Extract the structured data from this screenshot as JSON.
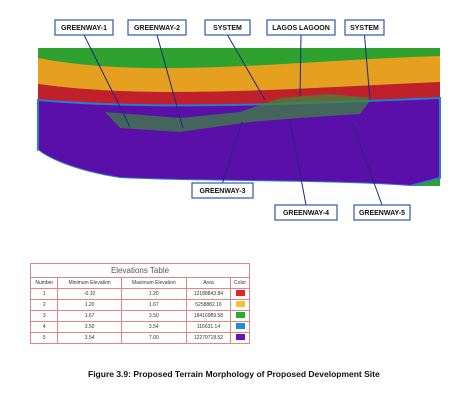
{
  "figure": {
    "callouts": [
      "GREENWAY-1",
      "GREENWAY-2",
      "SYSTEM",
      "LAGOS LAGOON",
      "SYSTEM",
      "GREENWAY-3",
      "GREENWAY-4",
      "GREENWAY-5"
    ]
  },
  "table": {
    "title": "Elevations Table",
    "headers": [
      "Number",
      "Minimum Elevation",
      "Maximum Elevation",
      "Area",
      "Color"
    ],
    "rows": [
      {
        "cells": [
          "1",
          "-0.10",
          "1.20",
          "12188843.84"
        ],
        "color": "#e8202a"
      },
      {
        "cells": [
          "2",
          "1.20",
          "1.67",
          "5258882.16"
        ],
        "color": "#f2c230"
      },
      {
        "cells": [
          "3",
          "1.67",
          "3.50",
          "18416989.58"
        ],
        "color": "#26b026"
      },
      {
        "cells": [
          "4",
          "3.50",
          "3.54",
          "116631.14"
        ],
        "color": "#1a8fd6"
      },
      {
        "cells": [
          "5",
          "3.54",
          "7.00",
          "12270718.52"
        ],
        "color": "#6a12b8"
      }
    ]
  },
  "caption": "Figure 3.9: Proposed Terrain Morphology of Proposed Development Site"
}
